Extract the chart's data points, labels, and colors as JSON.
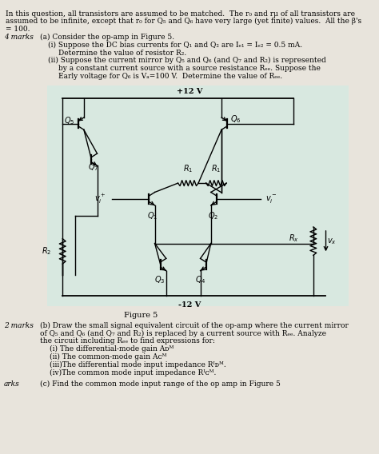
{
  "bg_color": "#e8e4dc",
  "circuit_bg": "#d8e8e0",
  "header_line1": "In this question, all transistors are assumed to be matched.  The r₀ and rμ of all transistors are",
  "header_line2": "assumed to be infinite, except that r₀ for Q₅ and Q₆ have very large (yet finite) values.  All the β's",
  "header_line3": "= 100.",
  "marks_a": "4 marks",
  "part_a_title": "(a) Consider the op-amp in Figure 5.",
  "part_a_i": "(i) Suppose the DC bias currents for Q₁ and Q₂ are Iₑ₁ = Iₑ₂ = 0.5 mA.",
  "part_a_i_sub": "Determine the value of resistor R₂.",
  "part_a_ii": "(ii) Suppose the current mirror by Q₅ and Q₆ (and Q₇ and R₂) is represented",
  "part_a_ii_2": "by a constant current source with a source resistance Rₑₑ. Suppose the",
  "part_a_ii_3": "Early voltage for Q₆ is Vₐ=100 V.  Determine the value of Rₑₑ.",
  "figure_label": "Figure 5",
  "vplus": "+12 V",
  "vminus": "-12 V",
  "marks_b": "2 marks",
  "part_b_title": "(b) Draw the small signal equivalent circuit of the op-amp where the current mirror",
  "part_b_2": "of Q₅ and Q₆ (and Q₇ and R₂) is replaced by a current source with Rₑₑ. Analyze",
  "part_b_3": "the circuit including Rₑₑ to find expressions for:",
  "part_b_i": "(i) The differential-mode gain Aᴅᴹ",
  "part_b_ii": "(ii) The common-mode gain Aᴄᴹ",
  "part_b_iii": "(iii)The differential mode input impedance Rᴵᴅᴹ.",
  "part_b_iv": "(iv)The common mode input impedance Rᴵᴄᴹ.",
  "marks_c": "arks",
  "part_c": "(c) Find the common mode input range of the op amp in Figure 5"
}
